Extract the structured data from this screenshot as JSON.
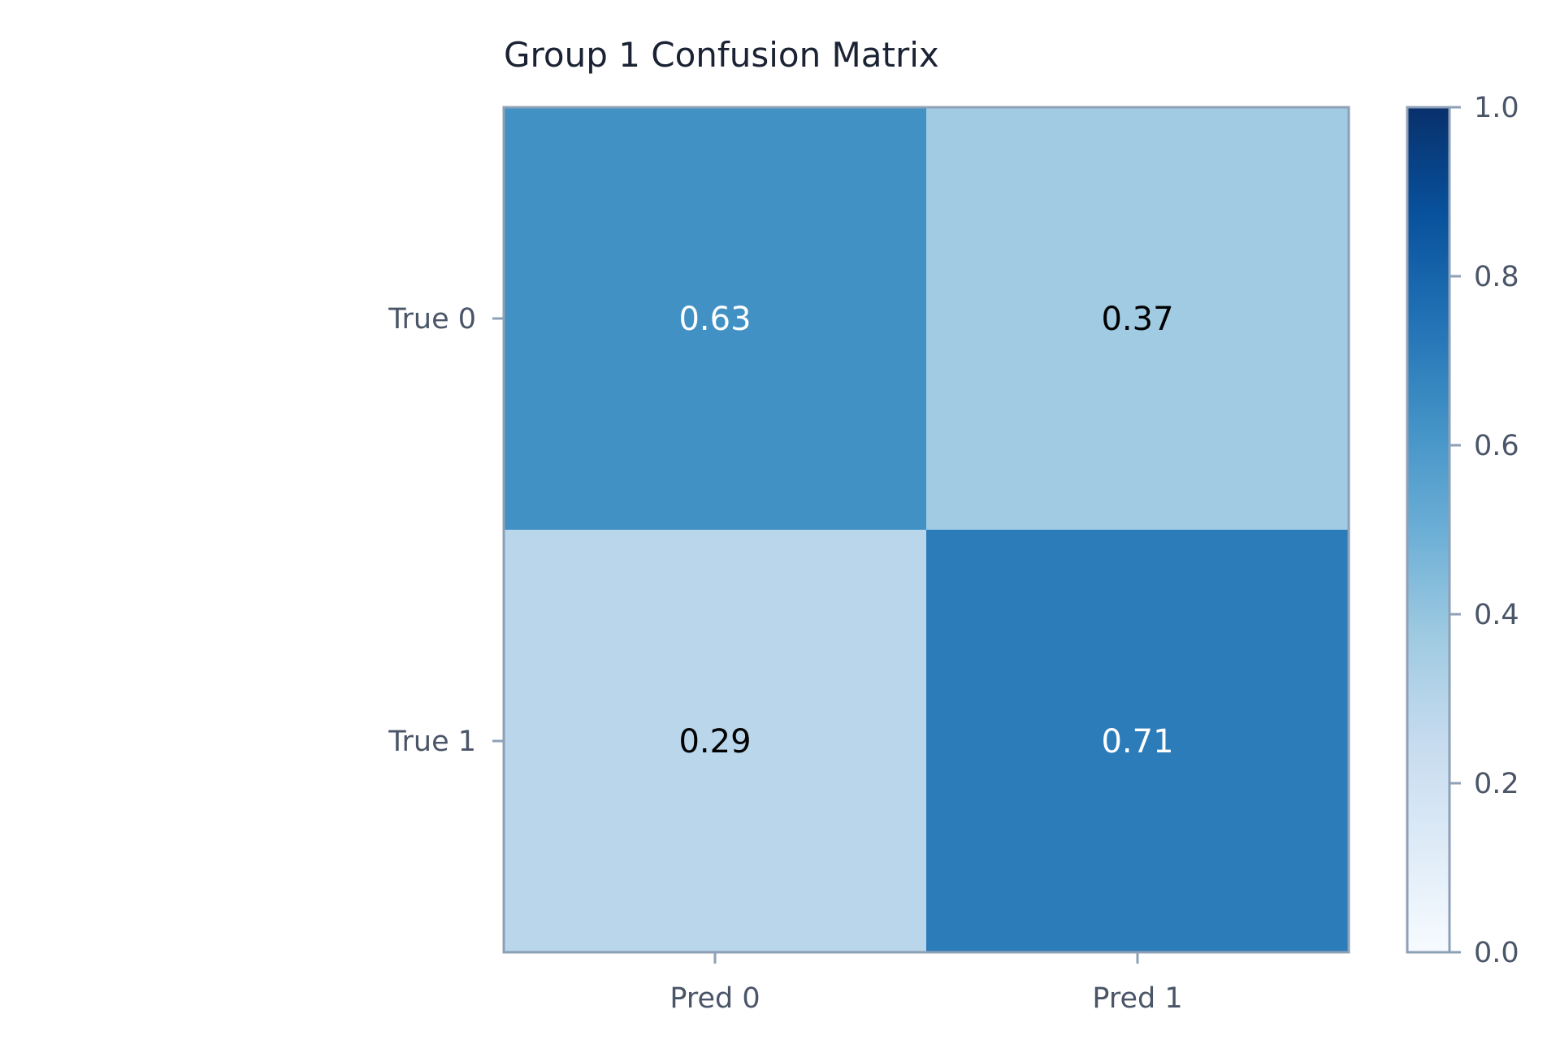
{
  "chart_data": {
    "type": "heatmap",
    "title": "Group 1 Confusion Matrix",
    "x_categories": [
      "Pred 0",
      "Pred 1"
    ],
    "y_categories": [
      "True 0",
      "True 1"
    ],
    "values": [
      [
        0.63,
        0.37
      ],
      [
        0.29,
        0.71
      ]
    ],
    "value_labels": [
      [
        "0.63",
        "0.37"
      ],
      [
        "0.29",
        "0.71"
      ]
    ],
    "colorscale": "Blues",
    "colorbar": {
      "range": [
        0.0,
        1.0
      ],
      "ticks": [
        0.0,
        0.2,
        0.4,
        0.6,
        0.8,
        1.0
      ],
      "tick_labels": [
        "0.0",
        "0.2",
        "0.4",
        "0.6",
        "0.8",
        "1.0"
      ]
    },
    "colors": {
      "axis": "#8ea0b5",
      "tick_text": "#4a5568",
      "title_text": "#1a2233"
    }
  }
}
